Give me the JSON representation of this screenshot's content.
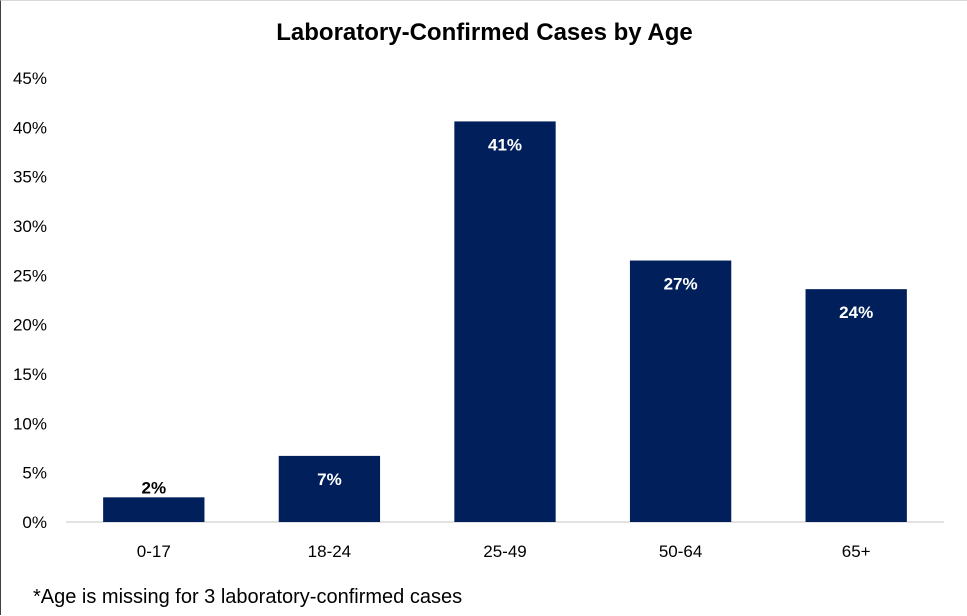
{
  "chart_data": {
    "type": "bar",
    "title": "Laboratory-Confirmed Cases by Age",
    "xlabel": "",
    "ylabel": "",
    "categories": [
      "0-17",
      "18-24",
      "25-49",
      "50-64",
      "65+"
    ],
    "values": [
      2.5,
      6.7,
      40.6,
      26.5,
      23.6
    ],
    "data_labels": [
      "2%",
      "7%",
      "41%",
      "27%",
      "24%"
    ],
    "ylim": [
      0,
      45
    ],
    "yticks": [
      0,
      5,
      10,
      15,
      20,
      25,
      30,
      35,
      40,
      45
    ],
    "ytick_labels": [
      "0%",
      "5%",
      "10%",
      "15%",
      "20%",
      "25%",
      "30%",
      "35%",
      "40%",
      "45%"
    ],
    "grid": false,
    "legend": "none",
    "bar_color": "#001f5b",
    "footnote": "*Age is missing for 3 laboratory-confirmed cases"
  }
}
